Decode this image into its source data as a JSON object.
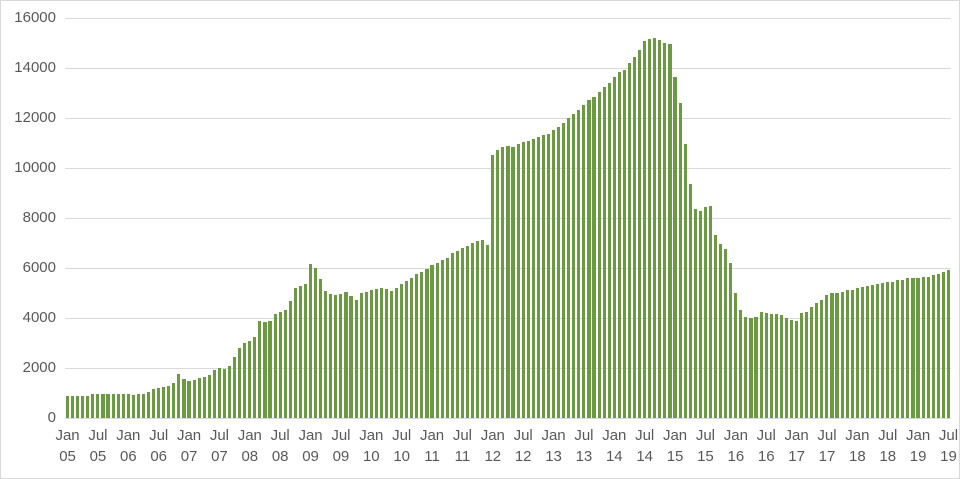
{
  "chart_data": {
    "type": "bar",
    "title": "",
    "xlabel": "",
    "ylabel": "",
    "x_start": "Jan 2005",
    "x_end": "Jul 2019",
    "x_frequency": "monthly",
    "ylim": [
      0,
      16000
    ],
    "ytick_step": 2000,
    "y_tick_labels": [
      "0",
      "2000",
      "4000",
      "6000",
      "8000",
      "10000",
      "12000",
      "14000",
      "16000"
    ],
    "x_tick_every_months": 6,
    "x_tick_labels": [
      {
        "month": "Jan",
        "year": "05"
      },
      {
        "month": "Jul",
        "year": "05"
      },
      {
        "month": "Jan",
        "year": "06"
      },
      {
        "month": "Jul",
        "year": "06"
      },
      {
        "month": "Jan",
        "year": "07"
      },
      {
        "month": "Jul",
        "year": "07"
      },
      {
        "month": "Jan",
        "year": "08"
      },
      {
        "month": "Jul",
        "year": "08"
      },
      {
        "month": "Jan",
        "year": "09"
      },
      {
        "month": "Jul",
        "year": "09"
      },
      {
        "month": "Jan",
        "year": "10"
      },
      {
        "month": "Jul",
        "year": "10"
      },
      {
        "month": "Jan",
        "year": "11"
      },
      {
        "month": "Jul",
        "year": "11"
      },
      {
        "month": "Jan",
        "year": "12"
      },
      {
        "month": "Jul",
        "year": "12"
      },
      {
        "month": "Jan",
        "year": "13"
      },
      {
        "month": "Jul",
        "year": "13"
      },
      {
        "month": "Jan",
        "year": "14"
      },
      {
        "month": "Jul",
        "year": "14"
      },
      {
        "month": "Jan",
        "year": "15"
      },
      {
        "month": "Jul",
        "year": "15"
      },
      {
        "month": "Jan",
        "year": "16"
      },
      {
        "month": "Jul",
        "year": "16"
      },
      {
        "month": "Jan",
        "year": "17"
      },
      {
        "month": "Jul",
        "year": "17"
      },
      {
        "month": "Jan",
        "year": "18"
      },
      {
        "month": "Jul",
        "year": "18"
      },
      {
        "month": "Jan",
        "year": "19"
      },
      {
        "month": "Jul",
        "year": "19"
      }
    ],
    "values": [
      900,
      890,
      890,
      880,
      900,
      950,
      950,
      970,
      960,
      950,
      970,
      960,
      970,
      930,
      950,
      960,
      1040,
      1170,
      1210,
      1240,
      1280,
      1410,
      1750,
      1550,
      1480,
      1530,
      1590,
      1650,
      1720,
      1920,
      1990,
      1960,
      2100,
      2450,
      2800,
      3000,
      3100,
      3250,
      3900,
      3850,
      3900,
      4180,
      4250,
      4320,
      4690,
      5190,
      5280,
      5370,
      6150,
      6000,
      5550,
      5080,
      4950,
      4920,
      4970,
      5050,
      4880,
      4740,
      5010,
      5050,
      5110,
      5150,
      5190,
      5150,
      5100,
      5200,
      5380,
      5470,
      5600,
      5750,
      5850,
      5950,
      6130,
      6200,
      6330,
      6400,
      6600,
      6670,
      6800,
      6870,
      7000,
      7070,
      7130,
      6930,
      10510,
      10730,
      10830,
      10900,
      10860,
      10970,
      11030,
      11100,
      11150,
      11240,
      11310,
      11380,
      11520,
      11660,
      11790,
      11990,
      12160,
      12320,
      12520,
      12720,
      12850,
      13050,
      13250,
      13390,
      13650,
      13850,
      13920,
      14190,
      14450,
      14720,
      15090,
      15180,
      15220,
      15130,
      15020,
      14950,
      13660,
      12620,
      10970,
      9370,
      8370,
      8300,
      8430,
      8500,
      7320,
      6960,
      6750,
      6190,
      4990,
      4320,
      4030,
      3990,
      4050,
      4250,
      4210,
      4150,
      4170,
      4130,
      4000,
      3930,
      3900,
      4190,
      4250,
      4450,
      4590,
      4720,
      4920,
      4990,
      5010,
      5030,
      5120,
      5140,
      5190,
      5250,
      5270,
      5320,
      5350,
      5410,
      5440,
      5460,
      5520,
      5530,
      5590,
      5590,
      5620,
      5650,
      5660,
      5720,
      5750,
      5850,
      5920
    ],
    "grid": true,
    "legend": false,
    "colors": {
      "bar": "#6a9a41",
      "gridline": "#d9d9d9",
      "axis_label": "#595959",
      "frame_border": "#d8d8d8",
      "background": "#ffffff"
    }
  }
}
